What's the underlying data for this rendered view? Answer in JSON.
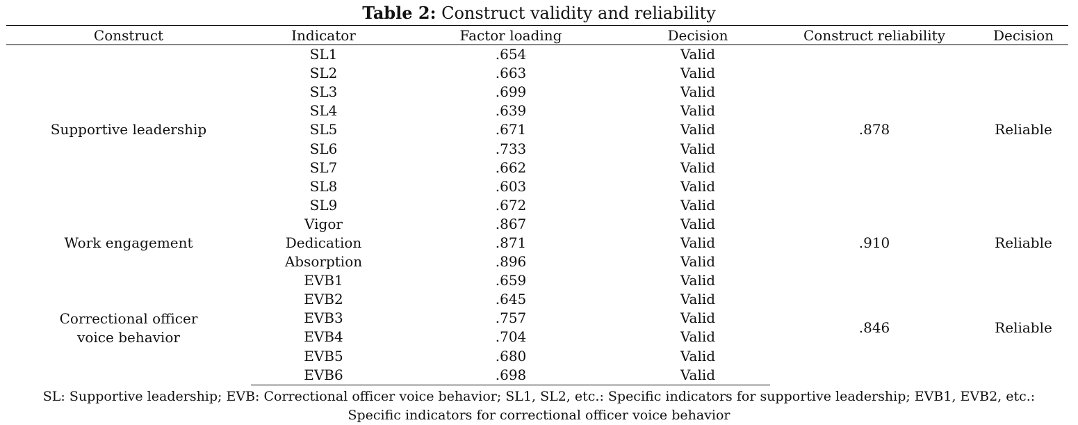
{
  "caption": {
    "label": "Table 2:",
    "text": "Construct validity and reliability"
  },
  "headers": {
    "construct": "Construct",
    "indicator": "Indicator",
    "factor_loading": "Factor loading",
    "decision": "Decision",
    "construct_reliability": "Construct reliability",
    "decision2": "Decision"
  },
  "groups": [
    {
      "construct": "Supportive leadership",
      "reliability": ".878",
      "decision": "Reliable",
      "rows": [
        {
          "indicator": "SL1",
          "loading": ".654",
          "decision": "Valid"
        },
        {
          "indicator": "SL2",
          "loading": ".663",
          "decision": "Valid"
        },
        {
          "indicator": "SL3",
          "loading": ".699",
          "decision": "Valid"
        },
        {
          "indicator": "SL4",
          "loading": ".639",
          "decision": "Valid"
        },
        {
          "indicator": "SL5",
          "loading": ".671",
          "decision": "Valid"
        },
        {
          "indicator": "SL6",
          "loading": ".733",
          "decision": "Valid"
        },
        {
          "indicator": "SL7",
          "loading": ".662",
          "decision": "Valid"
        },
        {
          "indicator": "SL8",
          "loading": ".603",
          "decision": "Valid"
        },
        {
          "indicator": "SL9",
          "loading": ".672",
          "decision": "Valid"
        }
      ]
    },
    {
      "construct": "Work engagement",
      "reliability": ".910",
      "decision": "Reliable",
      "rows": [
        {
          "indicator": "Vigor",
          "loading": ".867",
          "decision": "Valid"
        },
        {
          "indicator": "Dedication",
          "loading": ".871",
          "decision": "Valid"
        },
        {
          "indicator": "Absorption",
          "loading": ".896",
          "decision": "Valid"
        }
      ]
    },
    {
      "construct": "Correctional officer voice behavior",
      "reliability": ".846",
      "decision": "Reliable",
      "rows": [
        {
          "indicator": "EVB1",
          "loading": ".659",
          "decision": "Valid"
        },
        {
          "indicator": "EVB2",
          "loading": ".645",
          "decision": "Valid"
        },
        {
          "indicator": "EVB3",
          "loading": ".757",
          "decision": "Valid"
        },
        {
          "indicator": "EVB4",
          "loading": ".704",
          "decision": "Valid"
        },
        {
          "indicator": "EVB5",
          "loading": ".680",
          "decision": "Valid"
        },
        {
          "indicator": "EVB6",
          "loading": ".698",
          "decision": "Valid"
        }
      ]
    }
  ],
  "notes": "SL: Supportive leadership; EVB: Correctional officer voice behavior; SL1, SL2, etc.: Specific indicators for supportive leadership; EVB1, EVB2, etc.: Specific indicators for correctional officer voice behavior"
}
